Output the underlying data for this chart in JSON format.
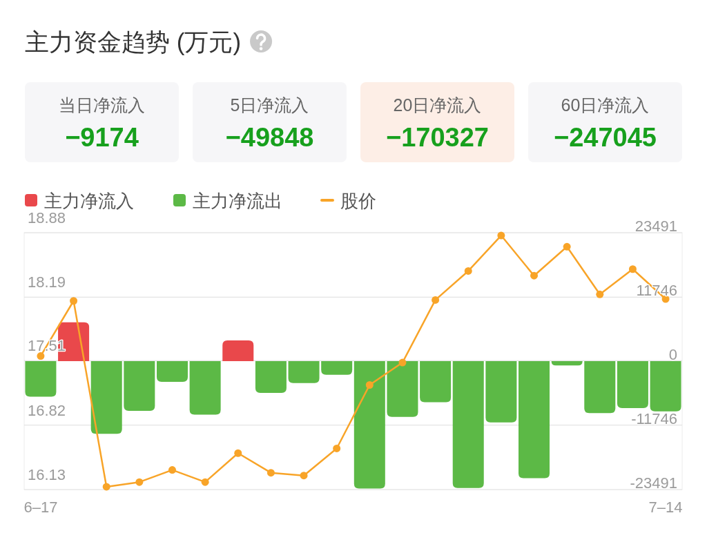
{
  "chart_data": [
    {
      "type": "other",
      "title": "主力资金趋势 (万元)",
      "categories": [
        "当日净流入",
        "5日净流入",
        "20日净流入",
        "60日净流入"
      ],
      "values": [
        -9174,
        -49848,
        -170327,
        -247045
      ],
      "data_labels": true,
      "colors": [
        "#f6f6f8",
        "#f6f6f8",
        "#fdeee6",
        "#f6f6f8"
      ]
    },
    {
      "type": "bar",
      "categories": [
        "6–17",
        null,
        null,
        null,
        null,
        null,
        null,
        null,
        null,
        null,
        null,
        null,
        null,
        null,
        null,
        null,
        null,
        null,
        null,
        "7–14"
      ],
      "series": [
        {
          "name": "主力净流入",
          "color": "#e9484b",
          "axis": "y2",
          "values": [
            null,
            7100,
            null,
            null,
            null,
            null,
            3800,
            null,
            null,
            null,
            null,
            null,
            null,
            null,
            null,
            null,
            null,
            null,
            null,
            null
          ]
        },
        {
          "name": "主力净流出",
          "color": "#5cb946",
          "axis": "y2",
          "values": [
            -6500,
            null,
            -13300,
            -9100,
            -3800,
            -9800,
            null,
            -5800,
            -4000,
            -2500,
            -23300,
            -10200,
            -7500,
            -23200,
            -11200,
            -21400,
            -800,
            -9500,
            -8600,
            -9200
          ]
        },
        {
          "name": "股价",
          "type": "line",
          "color": "#f8a428",
          "values": [
            17.56,
            18.15,
            16.16,
            16.21,
            16.34,
            16.21,
            16.52,
            16.31,
            16.28,
            16.57,
            17.25,
            17.49,
            18.16,
            18.47,
            18.85,
            18.42,
            18.73,
            18.22,
            18.49,
            18.17
          ]
        }
      ],
      "ylim": [
        16.13,
        18.88
      ],
      "yticks": [
        16.13,
        16.82,
        17.51,
        18.19,
        18.88
      ],
      "y2lim": [
        -23491,
        23491
      ],
      "y2ticks": [
        -23491,
        -11746,
        0,
        11746,
        23491
      ],
      "grid": "y",
      "legend": "top left",
      "marker": "circle"
    }
  ]
}
